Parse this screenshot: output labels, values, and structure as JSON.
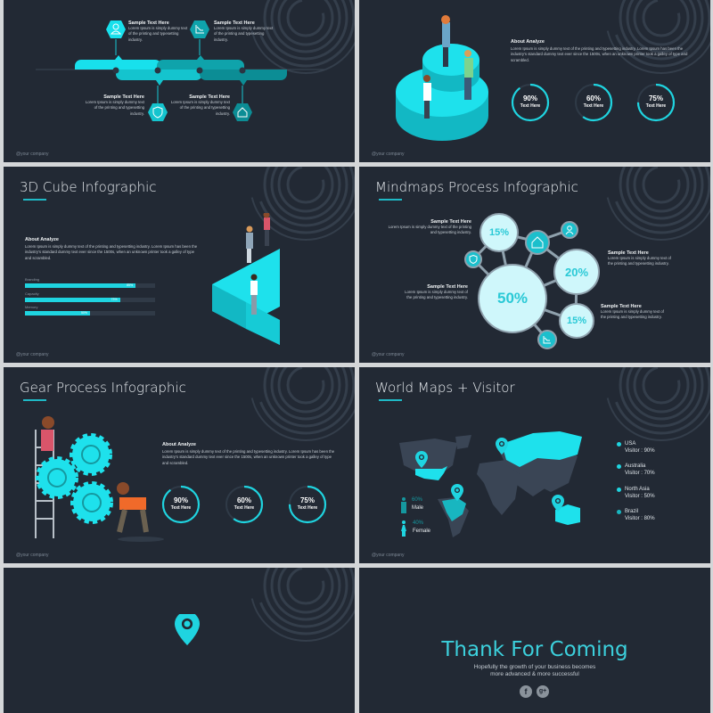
{
  "colors": {
    "slide_bg": "#222934",
    "accent": "#1fd4e0",
    "accent_dark": "#15989f",
    "page_bg": "#d4d6d8"
  },
  "footer": "@your company",
  "sample": {
    "heading": "Sample Text Here",
    "body": "Lorem Ipsum is simply dummy text of the printing and typesetting industry."
  },
  "about": {
    "heading": "About  Analyze",
    "body": "Lorem Ipsum is simply dummy text of the printing and typesetting industry. Lorem Ipsum has been the industry's standard dummy text ever since the 1500s, when an unknown printer took a galley of type and scrambled."
  },
  "slide1": {
    "icons": [
      "user-icon",
      "chart-down-icon",
      "shield-icon",
      "home-icon"
    ]
  },
  "rings": [
    {
      "value": 90,
      "label": "90%",
      "text": "Text Here"
    },
    {
      "value": 60,
      "label": "60%",
      "text": "Text Here"
    },
    {
      "value": 75,
      "label": "75%",
      "text": "Text Here"
    }
  ],
  "slide3": {
    "title": "3D Cube Infographic",
    "bars": [
      {
        "label": "Branding",
        "value": 85,
        "value_label": "85%"
      },
      {
        "label": "Capacity",
        "value": 73,
        "value_label": "73%"
      },
      {
        "label": "Memory",
        "value": 50,
        "value_label": "50%"
      }
    ]
  },
  "slide4": {
    "title": "Mindmaps Process Infographic",
    "bubbles": [
      "15%",
      "20%",
      "50%",
      "15%"
    ]
  },
  "slide5": {
    "title": "Gear Process Infographic"
  },
  "slide6": {
    "title": "World Maps + Visitor",
    "gender": [
      {
        "pct": "60%",
        "label": "Male"
      },
      {
        "pct": "40%",
        "label": "Female"
      }
    ],
    "legend": [
      {
        "name": "USA",
        "visitor": "Visitor : 90%"
      },
      {
        "name": "Australia",
        "visitor": "Visitor : 70%"
      },
      {
        "name": "North Asia",
        "visitor": "Visitor : 50%"
      },
      {
        "name": "Brazil",
        "visitor": "Visitor : 80%"
      }
    ]
  },
  "slide8": {
    "title": "Thank For Coming",
    "subtitle_line1": "Hopefully the growth of your business becomes",
    "subtitle_line2": "more advanced & more successful",
    "social": [
      {
        "icon": "facebook-icon",
        "glyph": "f"
      },
      {
        "icon": "google-plus-icon",
        "glyph": "g+"
      }
    ]
  }
}
